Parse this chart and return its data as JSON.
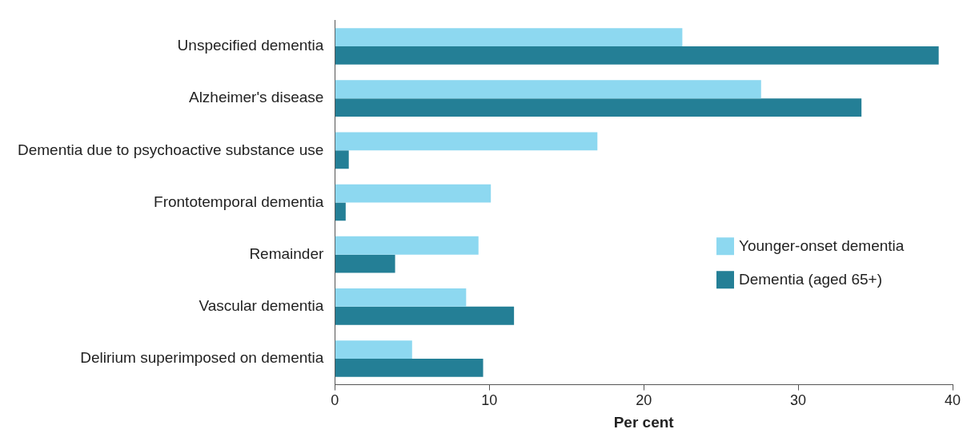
{
  "chart_data": {
    "type": "bar",
    "orientation": "horizontal",
    "xlabel": "Per cent",
    "categories": [
      "Unspecified dementia",
      "Alzheimer's disease",
      "Dementia due to psychoactive substance use",
      "Frontotemporal dementia",
      "Remainder",
      "Vascular dementia",
      "Delirium superimposed on dementia"
    ],
    "series": [
      {
        "name": "Younger-onset dementia",
        "color": "#8dd8f0",
        "values": [
          22.5,
          27.6,
          17.0,
          10.1,
          9.3,
          8.5,
          5.0
        ]
      },
      {
        "name": "Dementia (aged 65+)",
        "color": "#247f96",
        "values": [
          39.1,
          34.1,
          0.9,
          0.7,
          3.9,
          11.6,
          9.6
        ]
      }
    ],
    "xlim": [
      0,
      40
    ],
    "xticks": [
      0,
      10,
      20,
      30,
      40
    ],
    "grid": false,
    "legend": "bottom right"
  }
}
